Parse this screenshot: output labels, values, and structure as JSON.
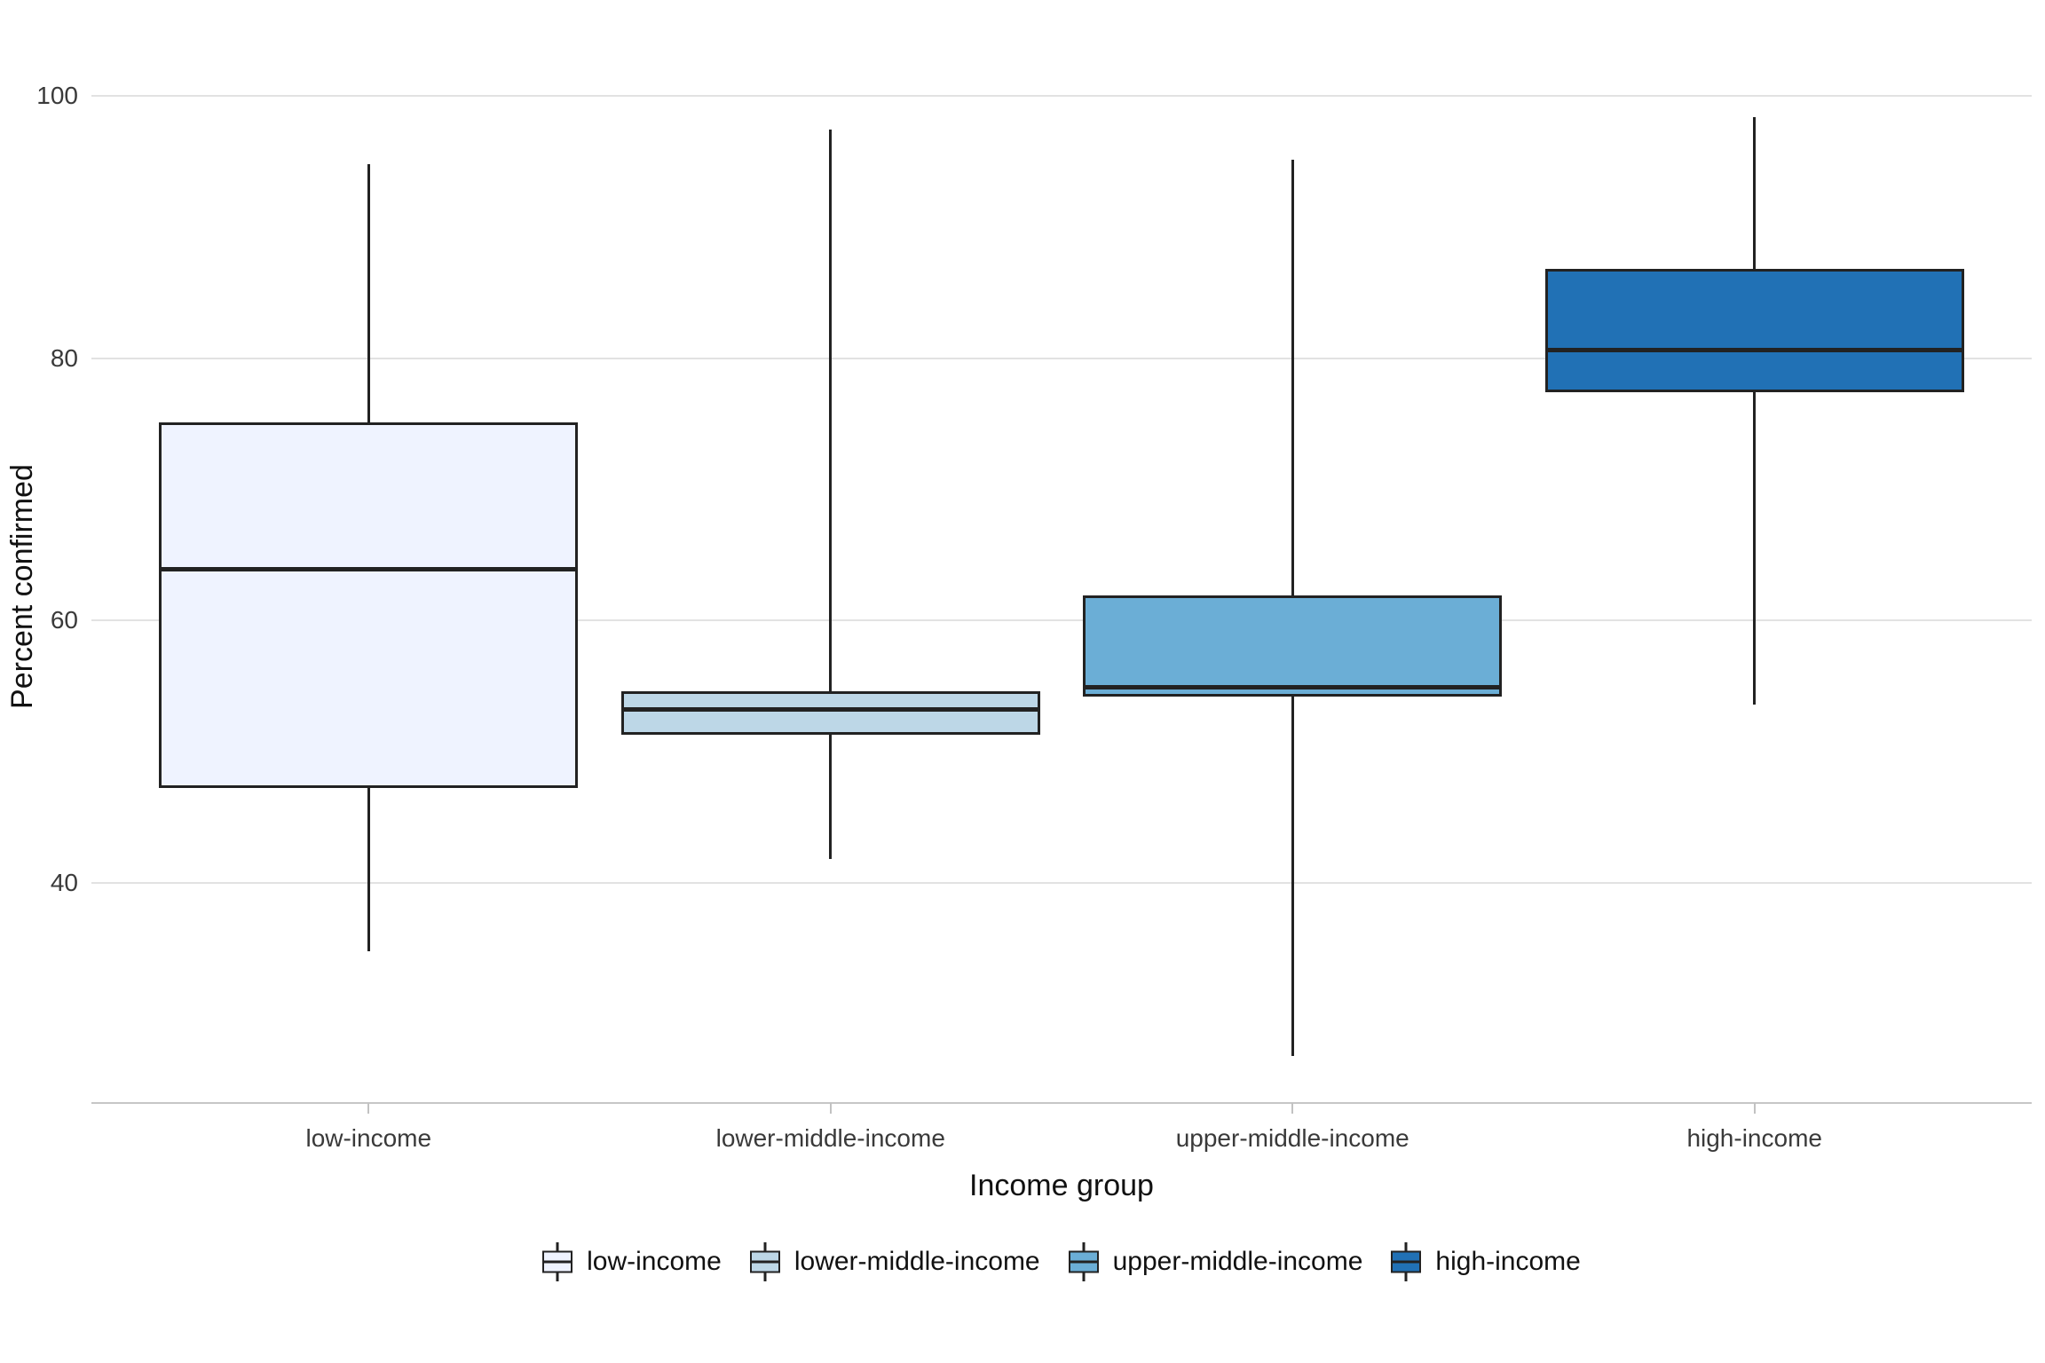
{
  "chart_data": {
    "type": "boxplot",
    "title": "",
    "xlabel": "Income group",
    "ylabel": "Percent confirmed",
    "categories": [
      "low-income",
      "lower-middle-income",
      "upper-middle-income",
      "high-income"
    ],
    "series": [
      {
        "name": "low-income",
        "color": "#eff3ff",
        "whisker_low": 34.8,
        "q1": 47.2,
        "median": 63.9,
        "q3": 75.1,
        "whisker_high": 94.8
      },
      {
        "name": "lower-middle-income",
        "color": "#bdd7e7",
        "whisker_low": 41.8,
        "q1": 51.3,
        "median": 53.2,
        "q3": 54.6,
        "whisker_high": 97.4
      },
      {
        "name": "upper-middle-income",
        "color": "#6baed6",
        "whisker_low": 26.8,
        "q1": 54.2,
        "median": 54.9,
        "q3": 61.9,
        "whisker_high": 95.1
      },
      {
        "name": "high-income",
        "color": "#2171b5",
        "whisker_low": 53.6,
        "q1": 77.4,
        "median": 80.6,
        "q3": 86.8,
        "whisker_high": 98.4
      }
    ],
    "y_ticks": [
      100,
      80,
      60,
      40
    ],
    "ylim": [
      23.2,
      101.9
    ],
    "grid": "horizontal",
    "legend_position": "bottom",
    "colors": {
      "box_border": "#222222",
      "gridline": "#e2e2e2",
      "axis_line": "#c6c6c6",
      "tick_text": "#3a3a3a",
      "title_text": "#111111"
    }
  }
}
